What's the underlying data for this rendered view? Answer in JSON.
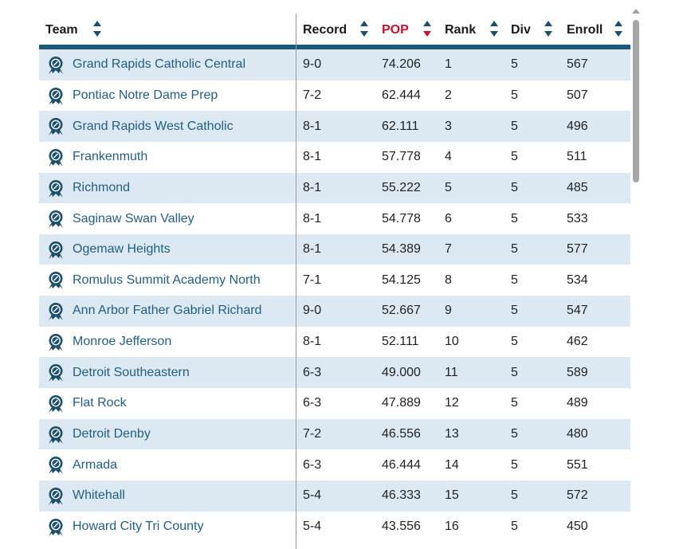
{
  "columns": [
    {
      "key": "team",
      "label": "Team",
      "sort": "none"
    },
    {
      "key": "record",
      "label": "Record",
      "sort": "none"
    },
    {
      "key": "pop",
      "label": "POP",
      "sort": "desc"
    },
    {
      "key": "rank",
      "label": "Rank",
      "sort": "none"
    },
    {
      "key": "div",
      "label": "Div",
      "sort": "none"
    },
    {
      "key": "enroll",
      "label": "Enroll",
      "sort": "none"
    }
  ],
  "colors": {
    "accent": "#c8102e",
    "brand": "#1b5a7a",
    "link": "#1f5f86",
    "row_stripe": "#dce9f3"
  },
  "team_icon": "award-ribbon-icon",
  "rows": [
    {
      "team": "Grand Rapids Catholic Central",
      "record": "9-0",
      "pop": "74.206",
      "rank": "1",
      "div": "5",
      "enroll": "567"
    },
    {
      "team": "Pontiac Notre Dame Prep",
      "record": "7-2",
      "pop": "62.444",
      "rank": "2",
      "div": "5",
      "enroll": "507"
    },
    {
      "team": "Grand Rapids West Catholic",
      "record": "8-1",
      "pop": "62.111",
      "rank": "3",
      "div": "5",
      "enroll": "496"
    },
    {
      "team": "Frankenmuth",
      "record": "8-1",
      "pop": "57.778",
      "rank": "4",
      "div": "5",
      "enroll": "511"
    },
    {
      "team": "Richmond",
      "record": "8-1",
      "pop": "55.222",
      "rank": "5",
      "div": "5",
      "enroll": "485"
    },
    {
      "team": "Saginaw Swan Valley",
      "record": "8-1",
      "pop": "54.778",
      "rank": "6",
      "div": "5",
      "enroll": "533"
    },
    {
      "team": "Ogemaw Heights",
      "record": "8-1",
      "pop": "54.389",
      "rank": "7",
      "div": "5",
      "enroll": "577"
    },
    {
      "team": "Romulus Summit Academy North",
      "record": "7-1",
      "pop": "54.125",
      "rank": "8",
      "div": "5",
      "enroll": "534"
    },
    {
      "team": "Ann Arbor Father Gabriel Richard",
      "record": "9-0",
      "pop": "52.667",
      "rank": "9",
      "div": "5",
      "enroll": "547"
    },
    {
      "team": "Monroe Jefferson",
      "record": "8-1",
      "pop": "52.111",
      "rank": "10",
      "div": "5",
      "enroll": "462"
    },
    {
      "team": "Detroit Southeastern",
      "record": "6-3",
      "pop": "49.000",
      "rank": "11",
      "div": "5",
      "enroll": "589"
    },
    {
      "team": "Flat Rock",
      "record": "6-3",
      "pop": "47.889",
      "rank": "12",
      "div": "5",
      "enroll": "489"
    },
    {
      "team": "Detroit Denby",
      "record": "7-2",
      "pop": "46.556",
      "rank": "13",
      "div": "5",
      "enroll": "480"
    },
    {
      "team": "Armada",
      "record": "6-3",
      "pop": "46.444",
      "rank": "14",
      "div": "5",
      "enroll": "551"
    },
    {
      "team": "Whitehall",
      "record": "5-4",
      "pop": "46.333",
      "rank": "15",
      "div": "5",
      "enroll": "572"
    },
    {
      "team": "Howard City Tri County",
      "record": "5-4",
      "pop": "43.556",
      "rank": "16",
      "div": "5",
      "enroll": "450"
    }
  ]
}
